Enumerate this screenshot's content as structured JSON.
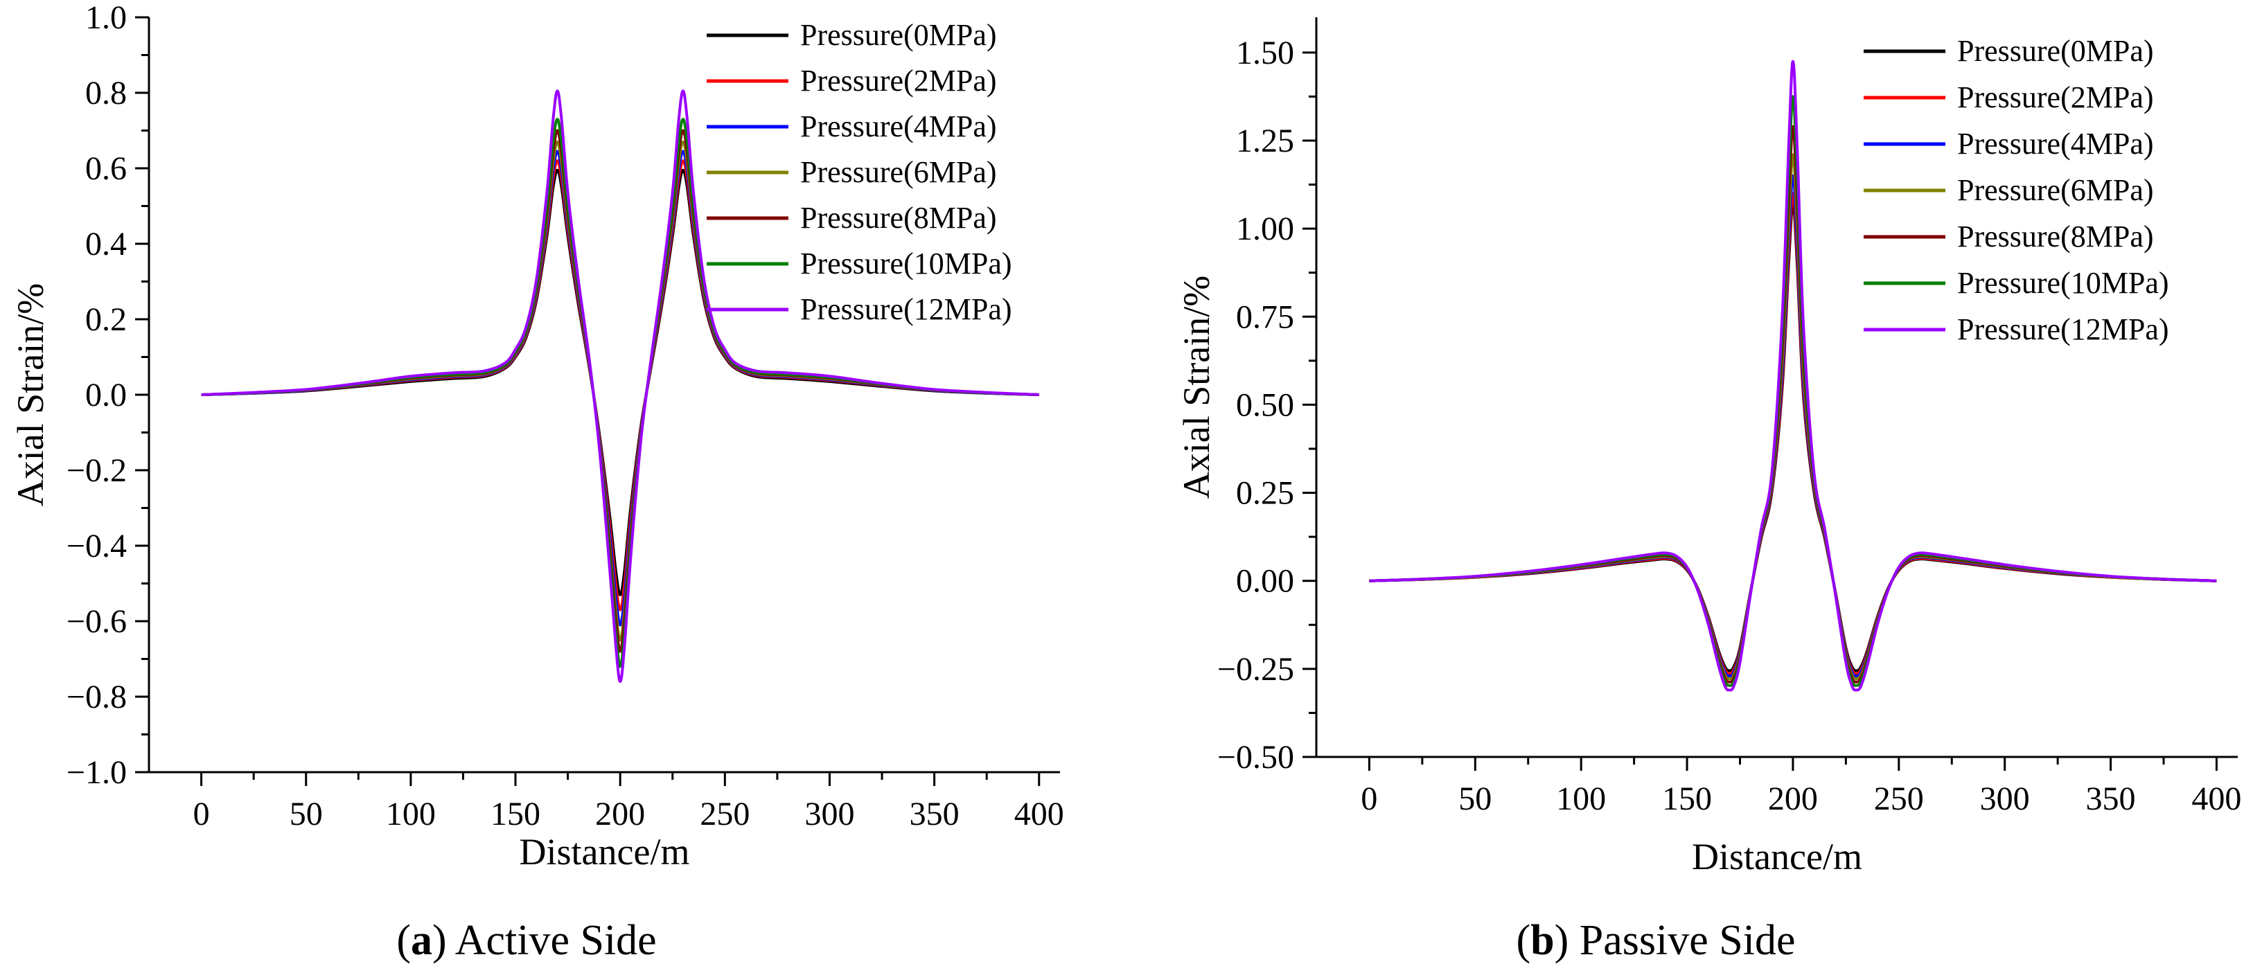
{
  "chart_data": [
    {
      "id": "a",
      "type": "line",
      "caption_letter": "a",
      "caption_text": "Active Side",
      "xlabel": "Distance/m",
      "ylabel": "Axial Strain/%",
      "xlim": [
        -25,
        410
      ],
      "ylim": [
        -1.0,
        1.0
      ],
      "xticks": [
        0,
        50,
        100,
        150,
        200,
        250,
        300,
        350,
        400
      ],
      "xtick_labels": [
        "0",
        "50",
        "100",
        "150",
        "200",
        "250",
        "300",
        "350",
        "400"
      ],
      "yticks": [
        -1.0,
        -0.8,
        -0.6,
        -0.4,
        -0.2,
        0.0,
        0.2,
        0.4,
        0.6,
        0.8,
        1.0
      ],
      "ytick_labels": [
        "−1.0",
        "−0.8",
        "−0.6",
        "−0.4",
        "−0.2",
        "0.0",
        "0.2",
        "0.4",
        "0.6",
        "0.8",
        "1.0"
      ],
      "legend_position": "top-right",
      "x": [
        0,
        25,
        50,
        75,
        100,
        120,
        135,
        145,
        150,
        155,
        160,
        165,
        168,
        170,
        172,
        175,
        180,
        185,
        190,
        195,
        198,
        200,
        202,
        205,
        210,
        215,
        220,
        225,
        228,
        230,
        232,
        235,
        240,
        245,
        250,
        255,
        265,
        280,
        300,
        325,
        350,
        375,
        400
      ],
      "series": [
        {
          "name": "Pressure(0MPa)",
          "color": "#000000",
          "peak": 0.595,
          "trough": -0.53,
          "values": [
            0.0,
            0.004,
            0.01,
            0.022,
            0.035,
            0.043,
            0.048,
            0.07,
            0.1,
            0.15,
            0.25,
            0.42,
            0.55,
            0.595,
            0.55,
            0.42,
            0.24,
            0.08,
            -0.1,
            -0.32,
            -0.47,
            -0.53,
            -0.47,
            -0.3,
            -0.08,
            0.08,
            0.24,
            0.42,
            0.55,
            0.595,
            0.55,
            0.42,
            0.25,
            0.15,
            0.1,
            0.07,
            0.048,
            0.043,
            0.035,
            0.022,
            0.01,
            0.004,
            0.0
          ]
        },
        {
          "name": "Pressure(2MPa)",
          "color": "#ff0000",
          "peak": 0.62,
          "trough": -0.57,
          "values": [
            0.0,
            0.004,
            0.011,
            0.024,
            0.038,
            0.046,
            0.051,
            0.072,
            0.103,
            0.154,
            0.258,
            0.435,
            0.572,
            0.62,
            0.572,
            0.435,
            0.25,
            0.084,
            -0.106,
            -0.345,
            -0.505,
            -0.57,
            -0.505,
            -0.323,
            -0.086,
            0.084,
            0.25,
            0.435,
            0.572,
            0.62,
            0.572,
            0.435,
            0.258,
            0.154,
            0.103,
            0.072,
            0.051,
            0.046,
            0.038,
            0.024,
            0.011,
            0.004,
            0.0
          ]
        },
        {
          "name": "Pressure(4MPa)",
          "color": "#0000ff",
          "peak": 0.645,
          "trough": -0.61,
          "values": [
            0.0,
            0.004,
            0.011,
            0.025,
            0.04,
            0.048,
            0.053,
            0.074,
            0.106,
            0.158,
            0.266,
            0.45,
            0.594,
            0.645,
            0.594,
            0.45,
            0.26,
            0.088,
            -0.112,
            -0.37,
            -0.54,
            -0.61,
            -0.54,
            -0.345,
            -0.092,
            0.088,
            0.26,
            0.45,
            0.594,
            0.645,
            0.594,
            0.45,
            0.266,
            0.158,
            0.106,
            0.074,
            0.053,
            0.048,
            0.04,
            0.025,
            0.011,
            0.004,
            0.0
          ]
        },
        {
          "name": "Pressure(6MPa)",
          "color": "#808000",
          "peak": 0.67,
          "trough": -0.65,
          "values": [
            0.0,
            0.005,
            0.012,
            0.026,
            0.042,
            0.05,
            0.055,
            0.076,
            0.109,
            0.162,
            0.274,
            0.465,
            0.616,
            0.67,
            0.616,
            0.465,
            0.27,
            0.092,
            -0.118,
            -0.395,
            -0.575,
            -0.65,
            -0.575,
            -0.368,
            -0.098,
            0.092,
            0.27,
            0.465,
            0.616,
            0.67,
            0.616,
            0.465,
            0.274,
            0.162,
            0.109,
            0.076,
            0.055,
            0.05,
            0.042,
            0.026,
            0.012,
            0.005,
            0.0
          ]
        },
        {
          "name": "Pressure(8MPa)",
          "color": "#800000",
          "peak": 0.7,
          "trough": -0.68,
          "values": [
            0.0,
            0.005,
            0.012,
            0.027,
            0.044,
            0.052,
            0.057,
            0.078,
            0.112,
            0.166,
            0.282,
            0.482,
            0.642,
            0.7,
            0.642,
            0.482,
            0.28,
            0.096,
            -0.124,
            -0.412,
            -0.6,
            -0.68,
            -0.6,
            -0.385,
            -0.103,
            0.096,
            0.28,
            0.482,
            0.642,
            0.7,
            0.642,
            0.482,
            0.282,
            0.166,
            0.112,
            0.078,
            0.057,
            0.052,
            0.044,
            0.027,
            0.012,
            0.005,
            0.0
          ]
        },
        {
          "name": "Pressure(10MPa)",
          "color": "#008000",
          "peak": 0.73,
          "trough": -0.72,
          "values": [
            0.0,
            0.005,
            0.013,
            0.028,
            0.046,
            0.054,
            0.059,
            0.08,
            0.115,
            0.17,
            0.29,
            0.5,
            0.67,
            0.73,
            0.67,
            0.5,
            0.29,
            0.1,
            -0.13,
            -0.435,
            -0.635,
            -0.72,
            -0.635,
            -0.408,
            -0.108,
            0.1,
            0.29,
            0.5,
            0.67,
            0.73,
            0.67,
            0.5,
            0.29,
            0.17,
            0.115,
            0.08,
            0.059,
            0.054,
            0.046,
            0.028,
            0.013,
            0.005,
            0.0
          ]
        },
        {
          "name": "Pressure(12MPa)",
          "color": "#9b00ff",
          "peak": 0.805,
          "trough": -0.76,
          "values": [
            0.0,
            0.006,
            0.014,
            0.03,
            0.049,
            0.058,
            0.063,
            0.084,
            0.12,
            0.178,
            0.305,
            0.535,
            0.73,
            0.805,
            0.73,
            0.535,
            0.305,
            0.105,
            -0.138,
            -0.462,
            -0.67,
            -0.76,
            -0.67,
            -0.432,
            -0.115,
            0.105,
            0.305,
            0.535,
            0.73,
            0.805,
            0.73,
            0.535,
            0.305,
            0.178,
            0.12,
            0.084,
            0.063,
            0.058,
            0.049,
            0.03,
            0.014,
            0.006,
            0.0
          ]
        }
      ]
    },
    {
      "id": "b",
      "type": "line",
      "caption_letter": "b",
      "caption_text": "Passive Side",
      "xlabel": "Distance/m",
      "ylabel": "Axial Strain/%",
      "xlim": [
        -25,
        410
      ],
      "ylim": [
        -0.5,
        1.6
      ],
      "xticks": [
        0,
        50,
        100,
        150,
        200,
        250,
        300,
        350,
        400
      ],
      "xtick_labels": [
        "0",
        "50",
        "100",
        "150",
        "200",
        "250",
        "300",
        "350",
        "400"
      ],
      "yticks": [
        -0.5,
        -0.25,
        0.0,
        0.25,
        0.5,
        0.75,
        1.0,
        1.25,
        1.5
      ],
      "ytick_labels": [
        "−0.50",
        "−0.25",
        "0.00",
        "0.25",
        "0.50",
        "0.75",
        "1.00",
        "1.25",
        "1.50"
      ],
      "legend_position": "top-right",
      "x": [
        0,
        25,
        50,
        75,
        100,
        120,
        135,
        140,
        145,
        150,
        155,
        160,
        165,
        168,
        170,
        172,
        175,
        180,
        185,
        190,
        195,
        198,
        200,
        202,
        205,
        210,
        215,
        220,
        225,
        228,
        230,
        232,
        235,
        240,
        245,
        250,
        255,
        260,
        265,
        280,
        300,
        325,
        350,
        375,
        400
      ],
      "series": [
        {
          "name": "Pressure(0MPa)",
          "color": "#000000",
          "peak": 1.07,
          "trough": -0.255,
          "values": [
            0.0,
            0.004,
            0.01,
            0.02,
            0.035,
            0.05,
            0.06,
            0.062,
            0.055,
            0.03,
            -0.02,
            -0.1,
            -0.2,
            -0.245,
            -0.255,
            -0.245,
            -0.19,
            -0.03,
            0.12,
            0.25,
            0.55,
            0.9,
            1.07,
            0.9,
            0.52,
            0.25,
            0.12,
            -0.03,
            -0.19,
            -0.245,
            -0.255,
            -0.245,
            -0.2,
            -0.1,
            -0.02,
            0.03,
            0.055,
            0.062,
            0.06,
            0.05,
            0.035,
            0.02,
            0.01,
            0.004,
            0.0
          ]
        },
        {
          "name": "Pressure(2MPa)",
          "color": "#ff0000",
          "peak": 1.1,
          "trough": -0.263,
          "values": [
            0.0,
            0.004,
            0.01,
            0.021,
            0.036,
            0.052,
            0.062,
            0.064,
            0.057,
            0.031,
            -0.021,
            -0.103,
            -0.206,
            -0.253,
            -0.263,
            -0.253,
            -0.196,
            -0.031,
            0.124,
            0.258,
            0.566,
            0.925,
            1.1,
            0.925,
            0.535,
            0.258,
            0.124,
            -0.031,
            -0.196,
            -0.253,
            -0.263,
            -0.253,
            -0.206,
            -0.103,
            -0.021,
            0.031,
            0.057,
            0.064,
            0.062,
            0.052,
            0.036,
            0.021,
            0.01,
            0.004,
            0.0
          ]
        },
        {
          "name": "Pressure(4MPa)",
          "color": "#0000ff",
          "peak": 1.15,
          "trough": -0.27,
          "values": [
            0.0,
            0.004,
            0.011,
            0.022,
            0.038,
            0.054,
            0.065,
            0.067,
            0.06,
            0.033,
            -0.022,
            -0.106,
            -0.212,
            -0.26,
            -0.27,
            -0.26,
            -0.201,
            -0.032,
            0.128,
            0.265,
            0.59,
            0.965,
            1.15,
            0.965,
            0.56,
            0.265,
            0.128,
            -0.032,
            -0.201,
            -0.26,
            -0.27,
            -0.26,
            -0.212,
            -0.106,
            -0.022,
            0.033,
            0.06,
            0.067,
            0.065,
            0.054,
            0.038,
            0.022,
            0.011,
            0.004,
            0.0
          ]
        },
        {
          "name": "Pressure(6MPa)",
          "color": "#808000",
          "peak": 1.21,
          "trough": -0.278,
          "values": [
            0.0,
            0.004,
            0.011,
            0.023,
            0.04,
            0.056,
            0.067,
            0.069,
            0.062,
            0.034,
            -0.023,
            -0.109,
            -0.218,
            -0.268,
            -0.278,
            -0.268,
            -0.207,
            -0.033,
            0.132,
            0.273,
            0.62,
            1.015,
            1.21,
            1.015,
            0.59,
            0.273,
            0.132,
            -0.033,
            -0.207,
            -0.268,
            -0.278,
            -0.268,
            -0.218,
            -0.109,
            -0.023,
            0.034,
            0.062,
            0.069,
            0.067,
            0.056,
            0.04,
            0.023,
            0.011,
            0.004,
            0.0
          ]
        },
        {
          "name": "Pressure(8MPa)",
          "color": "#800000",
          "peak": 1.29,
          "trough": -0.287,
          "values": [
            0.0,
            0.005,
            0.012,
            0.024,
            0.042,
            0.058,
            0.07,
            0.072,
            0.064,
            0.035,
            -0.024,
            -0.113,
            -0.225,
            -0.277,
            -0.287,
            -0.277,
            -0.214,
            -0.034,
            0.136,
            0.282,
            0.66,
            1.08,
            1.29,
            1.08,
            0.63,
            0.282,
            0.136,
            -0.034,
            -0.214,
            -0.277,
            -0.287,
            -0.277,
            -0.225,
            -0.113,
            -0.024,
            0.035,
            0.064,
            0.072,
            0.07,
            0.058,
            0.042,
            0.024,
            0.012,
            0.005,
            0.0
          ]
        },
        {
          "name": "Pressure(10MPa)",
          "color": "#008000",
          "peak": 1.375,
          "trough": -0.297,
          "values": [
            0.0,
            0.005,
            0.012,
            0.025,
            0.044,
            0.061,
            0.073,
            0.075,
            0.067,
            0.037,
            -0.025,
            -0.117,
            -0.233,
            -0.287,
            -0.297,
            -0.287,
            -0.222,
            -0.035,
            0.141,
            0.292,
            0.705,
            1.15,
            1.375,
            1.15,
            0.67,
            0.292,
            0.141,
            -0.035,
            -0.222,
            -0.287,
            -0.297,
            -0.287,
            -0.233,
            -0.117,
            -0.025,
            0.037,
            0.067,
            0.075,
            0.073,
            0.061,
            0.044,
            0.025,
            0.012,
            0.005,
            0.0
          ]
        },
        {
          "name": "Pressure(12MPa)",
          "color": "#9b00ff",
          "peak": 1.475,
          "trough": -0.31,
          "values": [
            0.0,
            0.005,
            0.013,
            0.027,
            0.046,
            0.064,
            0.077,
            0.079,
            0.07,
            0.039,
            -0.026,
            -0.122,
            -0.243,
            -0.3,
            -0.31,
            -0.3,
            -0.232,
            -0.037,
            0.147,
            0.305,
            0.755,
            1.235,
            1.475,
            1.235,
            0.72,
            0.305,
            0.147,
            -0.037,
            -0.232,
            -0.3,
            -0.31,
            -0.3,
            -0.243,
            -0.122,
            -0.026,
            0.039,
            0.07,
            0.079,
            0.077,
            0.064,
            0.046,
            0.027,
            0.013,
            0.005,
            0.0
          ]
        }
      ]
    }
  ]
}
